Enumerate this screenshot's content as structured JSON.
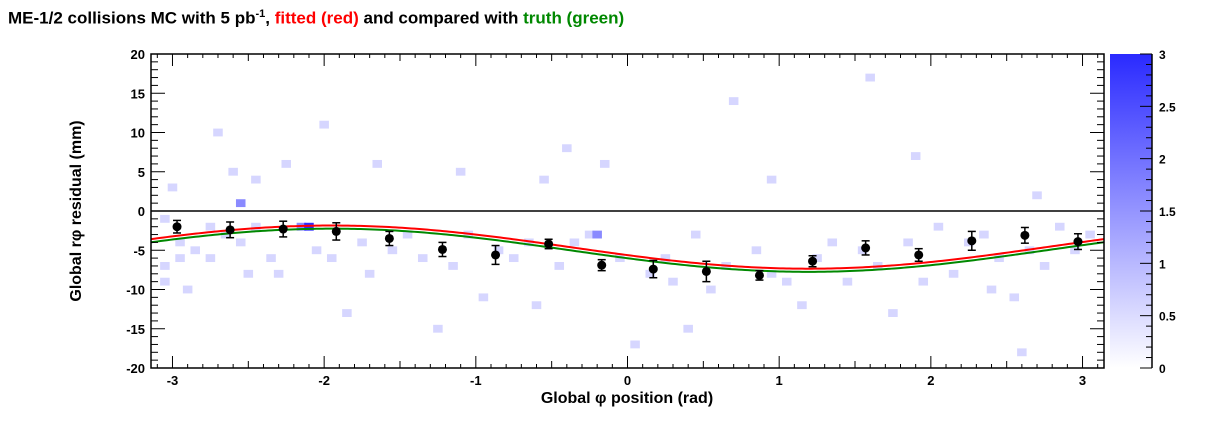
{
  "title": {
    "part1": "ME-1/2 collisions MC with 5 pb",
    "sup": "-1",
    "part2": ", ",
    "fitted": "fitted (red)",
    "part3": " and compared with ",
    "truth": "truth (green)"
  },
  "colors": {
    "fitted": "#ff0000",
    "truth": "#008800",
    "points": "#000000",
    "palette_low": "#ffffff",
    "palette_high": "#2a2aff"
  },
  "chart_data": {
    "type": "scatter",
    "xlabel": "Global φ position (rad)",
    "ylabel": "Global rφ residual (mm)",
    "xlim": [
      -3.1416,
      3.1416
    ],
    "ylim": [
      -20,
      20
    ],
    "xticks": [
      "-3",
      "-2",
      "-1",
      "0",
      "1",
      "2",
      "3"
    ],
    "yticks": [
      "20",
      "15",
      "10",
      "5",
      "0",
      "-5",
      "-10",
      "-15",
      "-20"
    ],
    "colorbar": {
      "range": [
        0,
        3
      ],
      "ticks": [
        "3",
        "2.5",
        "2",
        "1.5",
        "1",
        "0.5",
        "0"
      ]
    },
    "profile_points": {
      "x": [
        -2.97,
        -2.62,
        -2.27,
        -1.92,
        -1.57,
        -1.22,
        -0.87,
        -0.52,
        -0.17,
        0.17,
        0.52,
        0.87,
        1.22,
        1.57,
        1.92,
        2.27,
        2.62,
        2.97
      ],
      "y": [
        -2.0,
        -2.4,
        -2.3,
        -2.6,
        -3.5,
        -4.9,
        -5.6,
        -4.2,
        -6.9,
        -7.4,
        -7.7,
        -8.2,
        -6.4,
        -4.7,
        -5.6,
        -3.8,
        -3.1,
        -3.9
      ],
      "yerr": [
        0.8,
        1.0,
        1.0,
        1.1,
        0.9,
        0.9,
        1.2,
        0.6,
        0.7,
        1.1,
        1.3,
        0.6,
        0.7,
        0.9,
        0.8,
        1.2,
        1.0,
        1.0
      ]
    },
    "fit_curve": {
      "name": "fitted (red)",
      "center": -4.6,
      "amplitude": 2.75,
      "phase": 1.95
    },
    "truth_curve": {
      "name": "truth (green)",
      "center": -5.0,
      "amplitude": 2.75,
      "phase": 1.95
    },
    "reference_line_y": 0,
    "histogram_cells": [
      [
        -3.05,
        -7,
        1
      ],
      [
        -3.05,
        -9,
        1
      ],
      [
        -3.05,
        -1,
        1
      ],
      [
        -2.95,
        -4,
        1
      ],
      [
        -2.95,
        -6,
        1
      ],
      [
        -2.85,
        -5,
        1
      ],
      [
        -2.75,
        -2,
        1
      ],
      [
        -2.75,
        -6,
        1
      ],
      [
        -2.7,
        10,
        1
      ],
      [
        -2.65,
        -3,
        1
      ],
      [
        -2.55,
        1,
        2
      ],
      [
        -2.55,
        -4,
        1
      ],
      [
        -2.45,
        -2,
        1
      ],
      [
        -2.45,
        4,
        1
      ],
      [
        -2.35,
        -6,
        1
      ],
      [
        -2.3,
        -8,
        1
      ],
      [
        -2.25,
        6,
        1
      ],
      [
        -2.15,
        -2,
        2
      ],
      [
        -2.1,
        -2,
        3
      ],
      [
        -2.05,
        -5,
        1
      ],
      [
        -2.0,
        11,
        1
      ],
      [
        -1.95,
        -6,
        1
      ],
      [
        -1.85,
        -13,
        1
      ],
      [
        -1.75,
        -4,
        1
      ],
      [
        -1.65,
        6,
        1
      ],
      [
        -1.55,
        -5,
        1
      ],
      [
        -1.45,
        -3,
        1
      ],
      [
        -1.35,
        -6,
        1
      ],
      [
        -1.25,
        -15,
        1
      ],
      [
        -1.15,
        -7,
        1
      ],
      [
        -1.05,
        -3,
        1
      ],
      [
        -0.95,
        -11,
        1
      ],
      [
        -0.85,
        -5,
        1
      ],
      [
        -0.75,
        -6,
        1
      ],
      [
        -0.65,
        -4,
        1
      ],
      [
        -0.55,
        4,
        1
      ],
      [
        -0.45,
        -7,
        1
      ],
      [
        -0.35,
        -4,
        1
      ],
      [
        -0.25,
        -3,
        1
      ],
      [
        -0.2,
        -3,
        2
      ],
      [
        -0.15,
        6,
        1
      ],
      [
        -0.05,
        -6,
        1
      ],
      [
        0.05,
        -17,
        1
      ],
      [
        0.15,
        -8,
        1
      ],
      [
        0.25,
        -6,
        1
      ],
      [
        0.3,
        -9,
        1
      ],
      [
        0.45,
        -3,
        1
      ],
      [
        0.55,
        -10,
        1
      ],
      [
        0.65,
        -7,
        1
      ],
      [
        0.7,
        14,
        1
      ],
      [
        0.85,
        -5,
        1
      ],
      [
        0.95,
        -8,
        1
      ],
      [
        1.05,
        -9,
        1
      ],
      [
        1.15,
        -12,
        1
      ],
      [
        1.25,
        -6,
        1
      ],
      [
        1.35,
        -4,
        1
      ],
      [
        1.45,
        -9,
        1
      ],
      [
        1.55,
        -5,
        1
      ],
      [
        1.65,
        -7,
        1
      ],
      [
        1.75,
        -13,
        1
      ],
      [
        1.85,
        -4,
        1
      ],
      [
        1.95,
        -9,
        1
      ],
      [
        2.05,
        -2,
        1
      ],
      [
        2.15,
        -8,
        1
      ],
      [
        2.25,
        -4,
        1
      ],
      [
        2.35,
        -3,
        1
      ],
      [
        2.45,
        -6,
        1
      ],
      [
        2.55,
        -11,
        1
      ],
      [
        2.6,
        -18,
        1
      ],
      [
        2.65,
        -5,
        1
      ],
      [
        2.75,
        -7,
        1
      ],
      [
        2.85,
        -2,
        1
      ],
      [
        2.95,
        -5,
        1
      ],
      [
        3.05,
        -3,
        1
      ],
      [
        -2.9,
        -10,
        1
      ],
      [
        -2.5,
        -8,
        1
      ],
      [
        -1.7,
        -8,
        1
      ],
      [
        -0.6,
        -12,
        1
      ],
      [
        0.4,
        -15,
        1
      ],
      [
        1.6,
        17,
        1
      ],
      [
        2.4,
        -10,
        1
      ],
      [
        -1.1,
        5,
        1
      ],
      [
        1.9,
        7,
        1
      ],
      [
        -0.4,
        8,
        1
      ],
      [
        0.95,
        4,
        1
      ],
      [
        2.7,
        2,
        1
      ],
      [
        -2.6,
        5,
        1
      ],
      [
        -3.0,
        3,
        1
      ]
    ]
  }
}
